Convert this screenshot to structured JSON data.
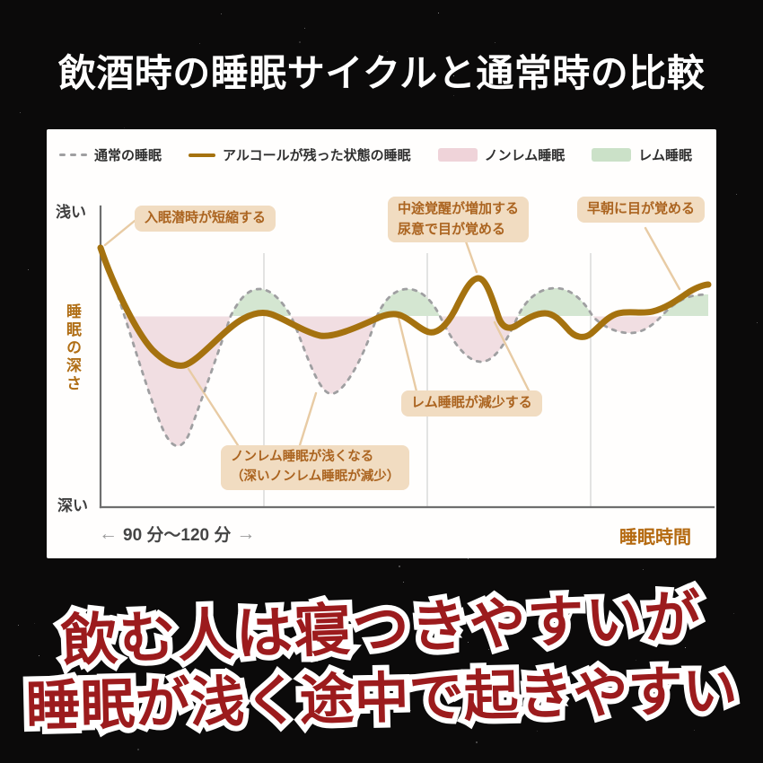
{
  "title": "飲酒時の睡眠サイクルと通常時の比較",
  "panel": {
    "legend": [
      {
        "label": "通常の睡眠",
        "swatch": "dashed-line",
        "color": "#9F9FA1"
      },
      {
        "label": "アルコールが残った状態の睡眠",
        "swatch": "solid-line",
        "color": "#A5720F"
      },
      {
        "label": "ノンレム睡眠",
        "swatch": "area",
        "color": "#EFD3D9"
      },
      {
        "label": "レム睡眠",
        "swatch": "area",
        "color": "#CBE1C8"
      }
    ],
    "y_axis": {
      "top": "浅い",
      "bottom": "深い",
      "title": "睡眠の深さ"
    },
    "x_axis": {
      "arrow_left": "←",
      "cycle_label": "90 分～120 分",
      "arrow_right": "→",
      "title": "睡眠時間"
    },
    "annotations": [
      {
        "lines": [
          "入眠潜時が短縮する"
        ]
      },
      {
        "lines": [
          "中途覚醒が増加する",
          "尿意で目が覚める"
        ]
      },
      {
        "lines": [
          "早朝に目が覚める"
        ]
      },
      {
        "lines": [
          "レム睡眠が減少する"
        ]
      },
      {
        "lines": [
          "ノンレム睡眠が浅くなる",
          "（深いノンレム睡眠が減少）"
        ]
      }
    ]
  },
  "caption": {
    "line1": "飲む人は寝つきやすいが",
    "line2": "睡眠が浅く途中で起きやすい"
  },
  "colors": {
    "caption_red": "#9C1B1D",
    "annotation_text": "#AB6420",
    "annotation_bg": "#F1DCC1",
    "connector": "#E8CBA4",
    "axis_brown_label": "#B4690F",
    "nonrem_fill": "#F1DEE2",
    "rem_fill": "#D4E6D1",
    "alcohol_line": "#A5720F",
    "normal_line": "#9F9FA1"
  },
  "chart_data": {
    "type": "line",
    "title": "飲酒時の睡眠サイクルと通常時の比較",
    "xlabel": "睡眠時間",
    "ylabel": "睡眠の深さ（0=浅い, 100=深い）",
    "x_unit": "percent_of_night",
    "y_unit": "depth_percent",
    "cycle_length_label": "90 分～120 分",
    "rem_nonrem_boundary_depth_pct": 36,
    "grid": "vertical line at each sleep cycle",
    "legend_position": "top",
    "series": [
      {
        "name": "通常の睡眠",
        "style": "dashed",
        "points": [
          [
            0,
            14
          ],
          [
            12,
            82
          ],
          [
            26,
            27
          ],
          [
            37,
            64
          ],
          [
            50,
            27
          ],
          [
            62,
            52
          ],
          [
            74,
            27
          ],
          [
            86,
            42
          ],
          [
            100,
            29
          ]
        ]
      },
      {
        "name": "アルコールが残った状態の睡眠",
        "style": "solid",
        "points": [
          [
            0,
            14
          ],
          [
            13,
            53
          ],
          [
            27,
            35
          ],
          [
            37,
            43
          ],
          [
            48,
            35
          ],
          [
            54,
            42
          ],
          [
            61,
            23
          ],
          [
            68,
            41
          ],
          [
            73,
            35
          ],
          [
            78,
            44
          ],
          [
            86,
            35
          ],
          [
            100,
            26
          ]
        ]
      }
    ],
    "bands": [
      {
        "name": "ノンレム睡眠",
        "region": "通常の睡眠曲線が境界より深い部分",
        "color": "#F1DEE2"
      },
      {
        "name": "レム睡眠",
        "region": "通常の睡眠曲線が境界より浅い部分",
        "color": "#D4E6D1"
      }
    ]
  }
}
